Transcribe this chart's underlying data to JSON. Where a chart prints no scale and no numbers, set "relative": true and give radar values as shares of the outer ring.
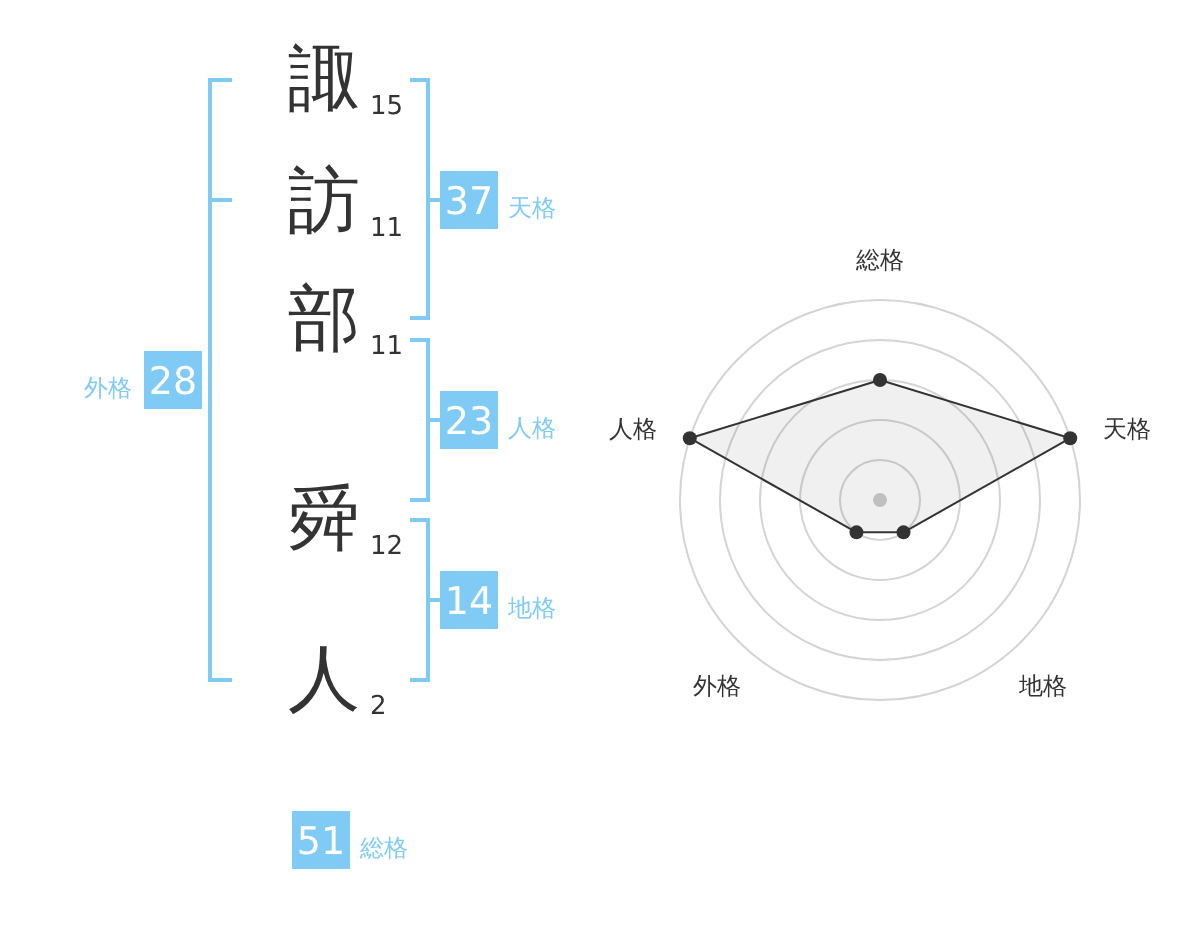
{
  "chart_data": [
    {
      "type": "other",
      "categories": [
        "諏",
        "訪",
        "部",
        "舜",
        "人"
      ],
      "values": [
        15,
        11,
        11,
        12,
        2
      ],
      "data_labels": true,
      "color": "#7fcbf5",
      "annotations": [
        "37",
        "天格",
        "23",
        "人格",
        "14",
        "地格",
        "28",
        "外格",
        "51",
        "総格"
      ]
    },
    {
      "type": "radar",
      "categories": [
        "総格",
        "天格",
        "地格",
        "外格",
        "人格"
      ],
      "relative": true,
      "grid": true,
      "marker": "circle",
      "series": [
        {
          "color": "#333333",
          "values": [
            0.6,
            1,
            0.2,
            0.2,
            1
          ]
        }
      ]
    }
  ]
}
